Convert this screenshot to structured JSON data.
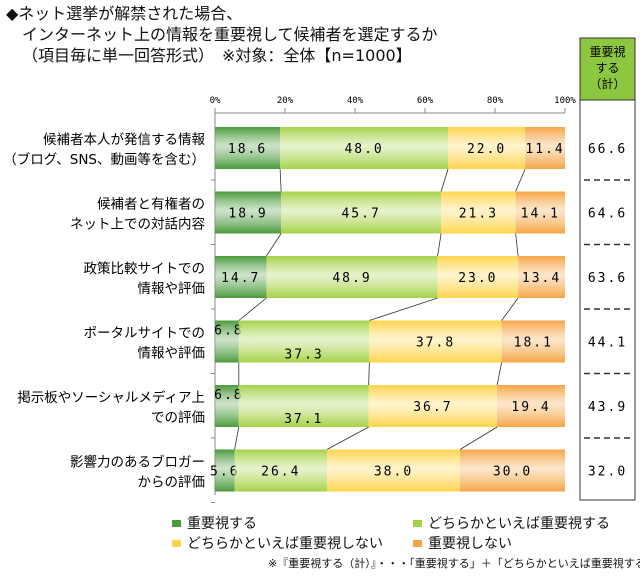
{
  "title_lines": [
    "◆ネット選挙が解禁された場合、",
    "インターネット上の情報を重要視して候補者を選定するか",
    "（項目毎に単一回答形式）　※対象：全体【n=1000】"
  ],
  "chart_data": {
    "type": "bar",
    "orientation": "horizontal-stacked-100",
    "xlim": [
      0,
      100
    ],
    "x_ticks": [
      "0%",
      "20%",
      "40%",
      "60%",
      "80%",
      "100%"
    ],
    "categories": [
      [
        "候補者本人が発信する情報",
        "（ブログ、SNS、動画等を含む）"
      ],
      [
        "候補者と有権者の",
        "ネット上での対話内容"
      ],
      [
        "政策比較サイトでの",
        "情報や評価"
      ],
      [
        "ポータルサイトでの",
        "情報や評価"
      ],
      [
        "掲示板やソーシャルメディア上",
        "での評価"
      ],
      [
        "影響力のあるブロガー",
        "からの評価"
      ]
    ],
    "series": [
      {
        "name": "重要視する",
        "color": "#4a9a3c",
        "values": [
          18.6,
          18.9,
          14.7,
          6.8,
          6.8,
          5.6
        ]
      },
      {
        "name": "どちらかといえば重要視する",
        "color": "#a5d146",
        "values": [
          48.0,
          45.7,
          48.9,
          37.3,
          37.1,
          26.4
        ]
      },
      {
        "name": "どちらかといえば重要視しない",
        "color": "#ffd44a",
        "values": [
          22.0,
          21.3,
          23.0,
          37.8,
          36.7,
          38.0
        ]
      },
      {
        "name": "重要視しない",
        "color": "#f5a444",
        "values": [
          11.4,
          14.1,
          13.4,
          18.1,
          19.4,
          30.0
        ]
      }
    ],
    "total_column": {
      "header": [
        "重要視",
        "する",
        "（計）"
      ],
      "header_color": "#8dc63f",
      "values": [
        "66.6",
        "64.6",
        "63.6",
        "44.1",
        "43.9",
        "32.0"
      ]
    },
    "legend_placement": "bottom",
    "footnote": "※『重要視する（計）』・・・「重要視する」＋「どちらかといえば重要視する」"
  }
}
